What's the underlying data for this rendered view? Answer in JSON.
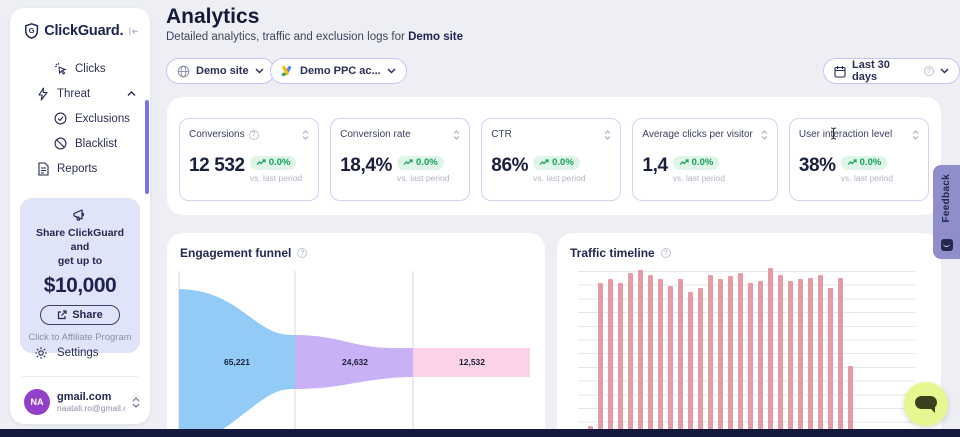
{
  "app": {
    "logo_text": "ClickGuard."
  },
  "sidebar": {
    "nav": [
      {
        "label": "Clicks"
      },
      {
        "label": "Threat"
      },
      {
        "label": "Exclusions"
      },
      {
        "label": "Blacklist"
      },
      {
        "label": "Reports"
      }
    ],
    "promo": {
      "line1": "Share ClickGuard and",
      "line2": "get up to",
      "amount": "$10,000",
      "share_label": "Share",
      "affiliate_label": "Click to Affiliate Program"
    },
    "settings_label": "Settings",
    "account": {
      "initials": "NA",
      "name": "gmail.com",
      "email": "naatali.ro@gmail.com"
    }
  },
  "header": {
    "title": "Analytics",
    "subtitle_prefix": "Detailed analytics, traffic and exclusion logs for ",
    "subtitle_bold": "Demo site"
  },
  "filters": {
    "site_label": "Demo site",
    "account_label": "Demo PPC ac...",
    "date_label": "Last 30 days"
  },
  "kpis": [
    {
      "label": "Conversions",
      "value": "12 532",
      "change": "0.0%",
      "compare": "vs. last period"
    },
    {
      "label": "Conversion rate",
      "value": "18,4%",
      "change": "0.0%",
      "compare": "vs. last period"
    },
    {
      "label": "CTR",
      "value": "86%",
      "change": "0.0%",
      "compare": "vs. last period"
    },
    {
      "label": "Average clicks per visitor",
      "value": "1,4",
      "change": "0.0%",
      "compare": "vs. last period"
    },
    {
      "label": "User interaction level",
      "value": "38%",
      "change": "0.0%",
      "compare": "vs. last period"
    }
  ],
  "feedback_label": "Feedback",
  "colors": {
    "accent_purple": "#7e71e6",
    "badge_green": "#14a05b",
    "funnel_blue": "#92cbf6",
    "funnel_purple": "#c9b1f5",
    "funnel_pink": "#fcd2e9",
    "timeline_bar": "#e59ba4"
  },
  "chart_data": [
    {
      "type": "area",
      "title": "Engagement funnel",
      "stages": [
        65221,
        24632,
        12532
      ],
      "stage_labels": [
        "65,221",
        "24,632",
        "12,532"
      ],
      "colors": [
        "#92cbf6",
        "#c9b1f5",
        "#fcd2e9"
      ],
      "grid": "vertical"
    },
    {
      "type": "bar",
      "title": "Traffic timeline",
      "values": [
        3,
        91,
        93,
        91,
        97,
        99,
        96,
        93,
        89,
        93,
        85,
        88,
        96,
        93,
        95,
        97,
        91,
        92,
        100,
        96,
        92,
        93,
        94,
        96,
        88,
        94,
        40
      ],
      "ylim": [
        0,
        100
      ],
      "xlabel": "",
      "ylabel": "",
      "grid": "horizontal",
      "color": "#e59ba4",
      "note": "relative heights, axis labels cropped out of view"
    }
  ]
}
